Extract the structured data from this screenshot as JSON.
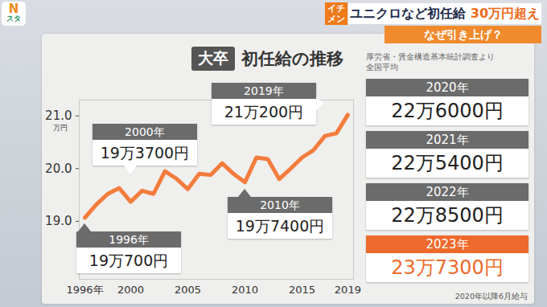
{
  "header": {
    "logo": [
      "N",
      "スタ"
    ],
    "tag": "イチメン",
    "headline": [
      "ユニクロなど初任給",
      "30万円超え"
    ],
    "subheadline": "なぜ引き上げ？"
  },
  "chart_data": {
    "type": "line",
    "title_badge": "大卒",
    "title": "初任給の推移",
    "source": [
      "厚労省・賃金構造基本統計調査より",
      "全国平均"
    ],
    "ylabel": "万円",
    "x": [
      1996,
      1997,
      1998,
      1999,
      2000,
      2001,
      2002,
      2003,
      2004,
      2005,
      2006,
      2007,
      2008,
      2009,
      2010,
      2011,
      2012,
      2013,
      2014,
      2015,
      2016,
      2017,
      2018,
      2019
    ],
    "values": [
      19.07,
      19.32,
      19.52,
      19.63,
      19.37,
      19.58,
      19.52,
      19.95,
      19.81,
      19.61,
      19.9,
      19.88,
      20.1,
      19.9,
      19.74,
      20.21,
      20.18,
      19.8,
      20.0,
      20.21,
      20.35,
      20.62,
      20.67,
      21.02
    ],
    "color": "#f47c3c",
    "xlim": [
      1995.5,
      2019.5
    ],
    "xticks": [
      {
        "value": 1996,
        "label": "1996年"
      },
      2000,
      2005,
      2010,
      2015,
      2019
    ],
    "ylim": [
      17.9,
      21.3
    ],
    "yticks": [
      19,
      20,
      21
    ],
    "grid": false,
    "annotations": [
      {
        "x": 1996,
        "y": 19.07,
        "title": "1996年",
        "text": "19万700円"
      },
      {
        "x": 2000,
        "y": 19.37,
        "title": "2000年",
        "text": "19万3700円"
      },
      {
        "x": 2010,
        "y": 19.74,
        "title": "2010年",
        "text": "19万7400円"
      },
      {
        "x": 2019,
        "y": 21.02,
        "title": "2019年",
        "text": "21万200円"
      }
    ],
    "side_panel": [
      {
        "title": "2020年",
        "text": "22万6000円",
        "color": "#6b6b6b"
      },
      {
        "title": "2021年",
        "text": "22万5400円",
        "color": "#6b6b6b"
      },
      {
        "title": "2022年",
        "text": "22万8500円",
        "color": "#6b6b6b"
      },
      {
        "title": "2023年",
        "text": "23万7300円",
        "color": "#ee6a2c"
      }
    ],
    "footnote": "2020年以降6月給与"
  }
}
